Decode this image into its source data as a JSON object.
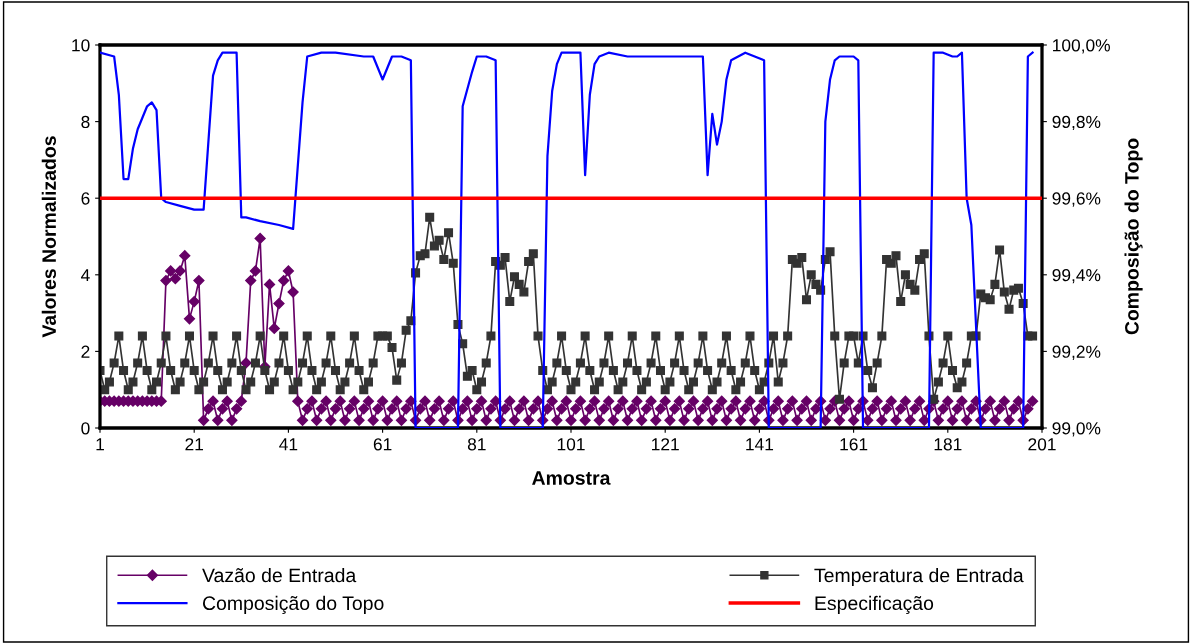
{
  "chart_data": {
    "type": "line",
    "xlabel": "Amostra",
    "ylabel": "Valores Normalizados",
    "y2label": "Composição do Topo",
    "x": [
      1,
      2,
      3,
      4,
      5,
      6,
      7,
      8,
      9,
      10,
      11,
      12,
      13,
      14,
      15,
      16,
      17,
      18,
      19,
      20,
      21,
      22,
      23,
      24,
      25,
      26,
      27,
      28,
      29,
      30,
      31,
      32,
      33,
      34,
      35,
      36,
      37,
      38,
      39,
      40,
      41,
      42,
      43,
      44,
      45,
      46,
      47,
      48,
      49,
      50,
      51,
      52,
      53,
      54,
      55,
      56,
      57,
      58,
      59,
      60,
      61,
      62,
      63,
      64,
      65,
      66,
      67,
      68,
      69,
      70,
      71,
      72,
      73,
      74,
      75,
      76,
      77,
      78,
      79,
      80,
      81,
      82,
      83,
      84,
      85,
      86,
      87,
      88,
      89,
      90,
      91,
      92,
      93,
      94,
      95,
      96,
      97,
      98,
      99,
      100,
      101,
      102,
      103,
      104,
      105,
      106,
      107,
      108,
      109,
      110,
      111,
      112,
      113,
      114,
      115,
      116,
      117,
      118,
      119,
      120,
      121,
      122,
      123,
      124,
      125,
      126,
      127,
      128,
      129,
      130,
      131,
      132,
      133,
      134,
      135,
      136,
      137,
      138,
      139,
      140,
      141,
      142,
      143,
      144,
      145,
      146,
      147,
      148,
      149,
      150,
      151,
      152,
      153,
      154,
      155,
      156,
      157,
      158,
      159,
      160,
      161,
      162,
      163,
      164,
      165,
      166,
      167,
      168,
      169,
      170,
      171,
      172,
      173,
      174,
      175,
      176,
      177,
      178,
      179,
      180,
      181,
      182,
      183,
      184,
      185,
      186,
      187,
      188,
      189,
      190,
      191,
      192,
      193,
      194,
      195,
      196,
      197,
      198,
      199
    ],
    "xlim": [
      1,
      201
    ],
    "xticks": [
      1,
      21,
      41,
      61,
      81,
      101,
      121,
      141,
      161,
      181,
      201
    ],
    "ylim": [
      0,
      10
    ],
    "yticks": [
      0,
      2,
      4,
      6,
      8,
      10
    ],
    "y2lim": [
      99.0,
      100.0
    ],
    "y2ticks": [
      {
        "value": 99.0,
        "label": "99,0%"
      },
      {
        "value": 99.2,
        "label": "99,2%"
      },
      {
        "value": 99.4,
        "label": "99,4%"
      },
      {
        "value": 99.6,
        "label": "99,6%"
      },
      {
        "value": 99.8,
        "label": "99,8%"
      },
      {
        "value": 100.0,
        "label": "100,0%"
      }
    ],
    "grid": false,
    "legend": "bottom",
    "series": [
      {
        "name": "Vazão de Entrada",
        "color": "#660066",
        "marker": "diamond",
        "values": [
          0.7,
          0.7,
          0.7,
          0.7,
          0.7,
          0.7,
          0.7,
          0.7,
          0.7,
          0.7,
          0.7,
          0.7,
          0.7,
          0.7,
          3.85,
          4.1,
          3.9,
          4.1,
          4.5,
          2.85,
          3.3,
          3.85,
          0.2,
          0.5,
          0.7,
          0.2,
          0.5,
          0.7,
          0.2,
          0.5,
          0.7,
          1.7,
          3.85,
          4.1,
          4.95,
          1.6,
          3.75,
          2.6,
          3.25,
          3.85,
          4.1,
          3.55,
          0.7,
          0.2,
          0.5,
          0.7,
          0.2,
          0.5,
          0.7,
          0.2,
          0.5,
          0.7,
          0.2,
          0.5,
          0.7,
          0.2,
          0.5,
          0.7,
          0.2,
          0.5,
          0.7,
          0.2,
          0.5,
          0.7,
          0.2,
          0.5,
          0.7,
          0.2,
          0.5,
          0.7,
          0.2,
          0.5,
          0.7,
          0.2,
          0.5,
          0.7,
          0.2,
          0.5,
          0.7,
          0.2,
          0.5,
          0.7,
          0.2,
          0.5,
          0.7,
          0.2,
          0.5,
          0.7,
          0.2,
          0.5,
          0.7,
          0.2,
          0.5,
          0.7,
          0.2,
          0.5,
          0.7,
          0.2,
          0.5,
          0.7,
          0.2,
          0.5,
          0.7,
          0.2,
          0.5,
          0.7,
          0.2,
          0.5,
          0.7,
          0.2,
          0.5,
          0.7,
          0.2,
          0.5,
          0.7,
          0.2,
          0.5,
          0.7,
          0.2,
          0.5,
          0.7,
          0.2,
          0.5,
          0.7,
          0.2,
          0.5,
          0.7,
          0.2,
          0.5,
          0.7,
          0.2,
          0.5,
          0.7,
          0.2,
          0.5,
          0.7,
          0.2,
          0.5,
          0.7,
          0.2,
          0.5,
          0.7,
          0.2,
          0.5,
          0.7,
          0.2,
          0.5,
          0.7,
          0.2,
          0.5,
          0.7,
          0.2,
          0.5,
          0.7,
          0.2,
          0.5,
          0.7,
          0.2,
          0.5,
          0.7,
          0.2,
          0.5,
          0.7,
          0.2,
          0.5,
          0.7,
          0.2,
          0.5,
          0.7,
          0.2,
          0.5,
          0.7,
          0.2,
          0.5,
          0.7,
          0.2,
          0.5,
          0.7,
          0.2,
          0.5,
          0.7,
          0.2,
          0.5,
          0.7,
          0.2,
          0.5,
          0.7,
          0.2,
          0.5,
          0.7,
          0.2,
          0.5,
          0.7,
          0.2,
          0.5,
          0.7,
          0.2,
          0.5,
          0.7
        ]
      },
      {
        "name": "Temperatura de Entrada",
        "color": "#333333",
        "marker": "square",
        "values": [
          1.5,
          1.0,
          1.2,
          1.7,
          2.4,
          1.5,
          1.0,
          1.2,
          1.7,
          2.4,
          1.5,
          1.0,
          1.2,
          1.7,
          2.4,
          1.5,
          1.0,
          1.2,
          1.7,
          2.4,
          1.5,
          1.0,
          1.2,
          1.7,
          2.4,
          1.5,
          1.0,
          1.2,
          1.7,
          2.4,
          1.5,
          1.0,
          1.2,
          1.7,
          2.4,
          1.5,
          1.0,
          1.2,
          1.7,
          2.4,
          1.5,
          1.0,
          1.2,
          1.7,
          2.4,
          1.5,
          1.0,
          1.2,
          1.7,
          2.4,
          1.5,
          1.0,
          1.2,
          1.7,
          2.4,
          1.5,
          1.0,
          1.2,
          1.7,
          2.4,
          2.4,
          2.4,
          2.1,
          1.25,
          1.7,
          2.55,
          2.8,
          4.05,
          4.5,
          4.55,
          5.5,
          4.75,
          4.9,
          4.4,
          5.1,
          4.3,
          2.7,
          2.2,
          1.35,
          1.5,
          1.0,
          1.2,
          1.7,
          2.4,
          4.35,
          4.25,
          4.45,
          3.3,
          3.95,
          3.75,
          3.55,
          4.35,
          4.55,
          2.4,
          1.5,
          1.0,
          1.2,
          1.7,
          2.4,
          1.5,
          1.0,
          1.2,
          1.7,
          2.4,
          1.5,
          1.0,
          1.2,
          1.7,
          2.4,
          1.5,
          1.0,
          1.2,
          1.7,
          2.4,
          1.5,
          1.0,
          1.2,
          1.7,
          2.4,
          1.5,
          1.0,
          1.2,
          1.7,
          2.4,
          1.5,
          1.0,
          1.2,
          1.7,
          2.4,
          1.5,
          1.0,
          1.2,
          1.7,
          2.4,
          1.5,
          1.0,
          1.2,
          1.7,
          2.4,
          1.5,
          1.0,
          1.2,
          1.7,
          2.4,
          1.2,
          1.7,
          2.4,
          4.4,
          4.3,
          4.45,
          3.35,
          4.0,
          3.75,
          3.6,
          4.4,
          4.6,
          2.4,
          0.75,
          1.7,
          2.4,
          2.4,
          1.7,
          2.4,
          1.5,
          1.05,
          1.7,
          2.4,
          4.4,
          4.3,
          4.5,
          3.3,
          4.0,
          3.75,
          3.6,
          4.4,
          4.55,
          2.4,
          0.75,
          1.2,
          1.7,
          2.4,
          1.5,
          1.05,
          1.2,
          1.7,
          2.4,
          2.4,
          3.5,
          3.4,
          3.35,
          3.75,
          4.65,
          3.55,
          3.1,
          3.6,
          3.65,
          3.25,
          2.4,
          2.4
        ]
      },
      {
        "name": "Composição do Topo",
        "color": "#0000ff",
        "axis": "y2",
        "marker": "none",
        "x": [
          1,
          4,
          5,
          6,
          7,
          8,
          9,
          11,
          12,
          13,
          14,
          15,
          18,
          21,
          23,
          25,
          26,
          27,
          30,
          31,
          32,
          35,
          39,
          42,
          44,
          45,
          48,
          51,
          57,
          59,
          61,
          63,
          65,
          67,
          68,
          77,
          78,
          80,
          81,
          83,
          85,
          86,
          95,
          96,
          97,
          98,
          99,
          103,
          104,
          105,
          106,
          107,
          109,
          113,
          121,
          122,
          129,
          130,
          131,
          132,
          133,
          134,
          135,
          138,
          142,
          143,
          154,
          155,
          156,
          157,
          158,
          161,
          162,
          163,
          177,
          178,
          180,
          182,
          183,
          184,
          185,
          186,
          188,
          197,
          198,
          199
        ],
        "values": [
          99.98,
          99.97,
          99.87,
          99.65,
          99.65,
          99.73,
          99.78,
          99.84,
          99.85,
          99.83,
          99.6,
          99.59,
          99.58,
          99.57,
          99.57,
          99.92,
          99.96,
          99.98,
          99.98,
          99.55,
          99.55,
          99.54,
          99.53,
          99.52,
          99.85,
          99.97,
          99.98,
          99.98,
          99.97,
          99.97,
          99.91,
          99.97,
          99.97,
          99.96,
          99.0,
          99.0,
          99.84,
          99.93,
          99.97,
          99.97,
          99.96,
          99.0,
          99.0,
          99.71,
          99.88,
          99.95,
          99.98,
          99.98,
          99.66,
          99.87,
          99.95,
          99.97,
          99.98,
          99.97,
          99.97,
          99.97,
          99.97,
          99.66,
          99.82,
          99.74,
          99.8,
          99.91,
          99.96,
          99.98,
          99.96,
          99.0,
          99.0,
          99.8,
          99.91,
          99.96,
          99.97,
          99.97,
          99.96,
          99.0,
          99.0,
          99.98,
          99.98,
          99.97,
          99.97,
          99.98,
          99.6,
          99.53,
          99.0,
          99.0,
          99.97,
          99.98
        ]
      }
    ],
    "ref_lines": [
      {
        "axis": "y2",
        "value": 99.6,
        "label": "Especificação",
        "color": "#ff0000",
        "line_style": "solid"
      }
    ]
  }
}
